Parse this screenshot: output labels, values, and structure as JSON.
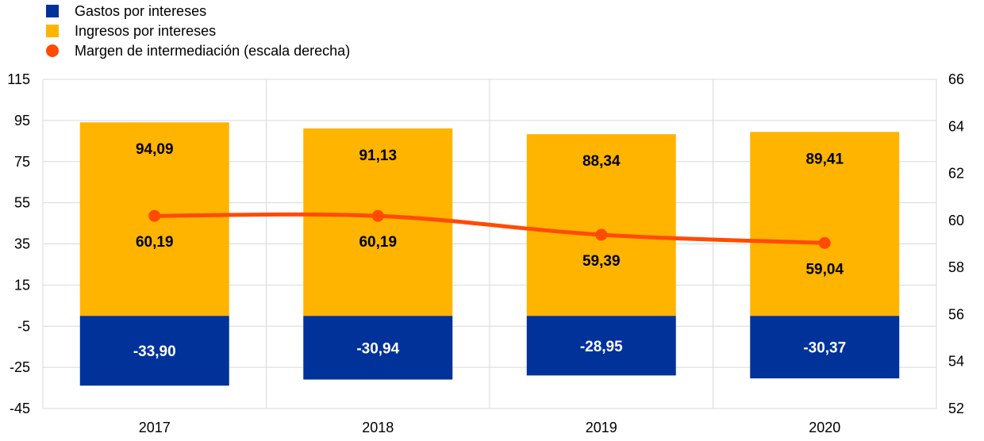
{
  "chart_data": {
    "type": "bar",
    "stacked": true,
    "categories": [
      "2017",
      "2018",
      "2019",
      "2020"
    ],
    "series": [
      {
        "name": "Gastos por intereses",
        "type": "bar",
        "axis": "left",
        "color": "#003299",
        "values": [
          -33.9,
          -30.94,
          -28.95,
          -30.37
        ],
        "labels": [
          "-33,90",
          "-30,94",
          "-28,95",
          "-30,37"
        ]
      },
      {
        "name": "Ingresos por intereses",
        "type": "bar",
        "axis": "left",
        "color": "#FFB400",
        "values": [
          94.09,
          91.13,
          88.34,
          89.41
        ],
        "labels": [
          "94,09",
          "91,13",
          "88,34",
          "89,41"
        ]
      },
      {
        "name": "Margen de intermediación (escala derecha)",
        "type": "line",
        "axis": "right",
        "color": "#FF4B00",
        "values": [
          60.19,
          60.19,
          59.39,
          59.04
        ],
        "labels": [
          "60,19",
          "60,19",
          "59,39",
          "59,04"
        ]
      }
    ],
    "y_left": {
      "ylim": [
        -45,
        115
      ],
      "ticks": [
        "115",
        "95",
        "75",
        "55",
        "35",
        "15",
        "-5",
        "-25",
        "-45"
      ]
    },
    "y_right": {
      "ylim": [
        52,
        66
      ],
      "ticks": [
        "66",
        "64",
        "62",
        "60",
        "58",
        "56",
        "54",
        "52"
      ]
    },
    "grid": true,
    "legend_position": "top-left"
  }
}
